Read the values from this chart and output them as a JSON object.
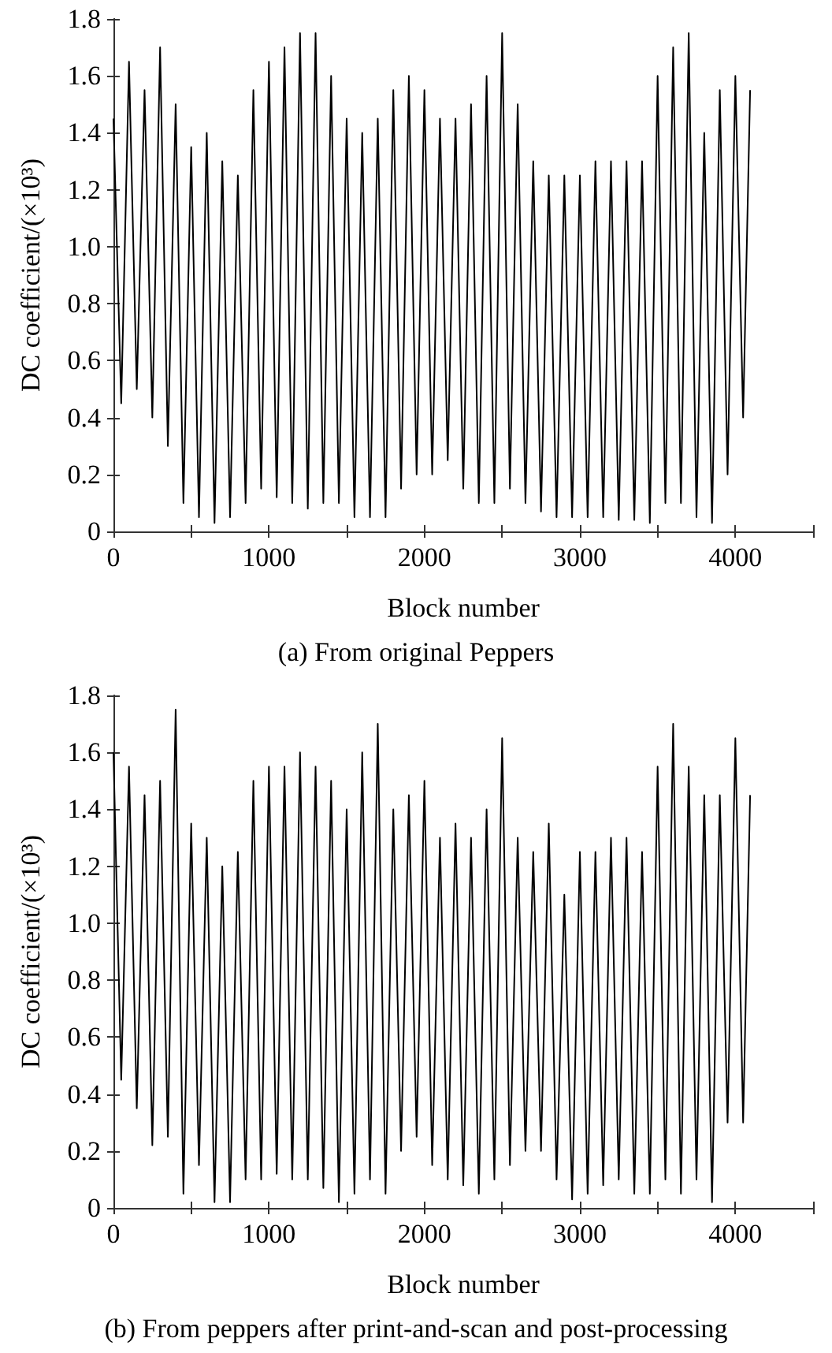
{
  "chart_data": [
    {
      "type": "line",
      "title": "(a) From original Peppers",
      "xlabel": "Block number",
      "ylabel": "DC coefficient/(×10³)",
      "xlim": [
        0,
        4500
      ],
      "xticks": [
        0,
        {
          "value": 500,
          "label": null
        },
        1000,
        {
          "value": 1500,
          "label": null
        },
        2000,
        {
          "value": 2500,
          "label": null
        },
        3000,
        {
          "value": 3500,
          "label": null
        },
        4000,
        {
          "value": 4500,
          "label": null
        }
      ],
      "ylim": [
        0,
        1.8
      ],
      "yticks": [
        0,
        0.2,
        0.4,
        0.6,
        0.8,
        {
          "value": 1,
          "label": "1.0"
        },
        1.2,
        1.4,
        1.6,
        1.8
      ],
      "series": [
        {
          "color": "#000000",
          "x": [
            0,
            50,
            100,
            150,
            200,
            250,
            300,
            350,
            400,
            450,
            500,
            550,
            600,
            650,
            700,
            750,
            800,
            850,
            900,
            950,
            1000,
            1050,
            1100,
            1150,
            1200,
            1250,
            1300,
            1350,
            1400,
            1450,
            1500,
            1550,
            1600,
            1650,
            1700,
            1750,
            1800,
            1850,
            1900,
            1950,
            2000,
            2050,
            2100,
            2150,
            2200,
            2250,
            2300,
            2350,
            2400,
            2450,
            2500,
            2550,
            2600,
            2650,
            2700,
            2750,
            2800,
            2850,
            2900,
            2950,
            3000,
            3050,
            3100,
            3150,
            3200,
            3250,
            3300,
            3350,
            3400,
            3450,
            3500,
            3550,
            3600,
            3650,
            3700,
            3750,
            3800,
            3850,
            3900,
            3950,
            4000,
            4050,
            4095
          ],
          "values": [
            1.45,
            0.45,
            1.65,
            0.5,
            1.55,
            0.4,
            1.7,
            0.3,
            1.5,
            0.1,
            1.35,
            0.05,
            1.4,
            0.03,
            1.3,
            0.05,
            1.25,
            0.1,
            1.55,
            0.15,
            1.65,
            0.12,
            1.7,
            0.1,
            1.75,
            0.08,
            1.75,
            0.1,
            1.6,
            0.1,
            1.45,
            0.05,
            1.4,
            0.05,
            1.45,
            0.05,
            1.55,
            0.15,
            1.6,
            0.2,
            1.55,
            0.2,
            1.45,
            0.25,
            1.45,
            0.15,
            1.5,
            0.1,
            1.6,
            0.1,
            1.75,
            0.15,
            1.5,
            0.1,
            1.3,
            0.07,
            1.25,
            0.05,
            1.25,
            0.05,
            1.25,
            0.05,
            1.3,
            0.05,
            1.3,
            0.04,
            1.3,
            0.04,
            1.3,
            0.03,
            1.6,
            0.1,
            1.7,
            0.1,
            1.75,
            0.05,
            1.4,
            0.03,
            1.55,
            0.2,
            1.6,
            0.4,
            1.55
          ]
        }
      ]
    },
    {
      "type": "line",
      "title": "(b) From peppers after print-and-scan and post-processing",
      "xlabel": "Block number",
      "ylabel": "DC coefficient/(×10³)",
      "xlim": [
        0,
        4500
      ],
      "xticks": [
        0,
        {
          "value": 500,
          "label": null
        },
        1000,
        {
          "value": 1500,
          "label": null
        },
        2000,
        {
          "value": 2500,
          "label": null
        },
        3000,
        {
          "value": 3500,
          "label": null
        },
        4000,
        {
          "value": 4500,
          "label": null
        }
      ],
      "ylim": [
        0,
        1.8
      ],
      "yticks": [
        0,
        0.2,
        0.4,
        0.6,
        0.8,
        {
          "value": 1,
          "label": "1.0"
        },
        1.2,
        1.4,
        1.6,
        1.8
      ],
      "series": [
        {
          "color": "#000000",
          "x": [
            0,
            50,
            100,
            150,
            200,
            250,
            300,
            350,
            400,
            450,
            500,
            550,
            600,
            650,
            700,
            750,
            800,
            850,
            900,
            950,
            1000,
            1050,
            1100,
            1150,
            1200,
            1250,
            1300,
            1350,
            1400,
            1450,
            1500,
            1550,
            1600,
            1650,
            1700,
            1750,
            1800,
            1850,
            1900,
            1950,
            2000,
            2050,
            2100,
            2150,
            2200,
            2250,
            2300,
            2350,
            2400,
            2450,
            2500,
            2550,
            2600,
            2650,
            2700,
            2750,
            2800,
            2850,
            2900,
            2950,
            3000,
            3050,
            3100,
            3150,
            3200,
            3250,
            3300,
            3350,
            3400,
            3450,
            3500,
            3550,
            3600,
            3650,
            3700,
            3750,
            3800,
            3850,
            3900,
            3950,
            4000,
            4050,
            4095
          ],
          "values": [
            1.6,
            0.45,
            1.55,
            0.35,
            1.45,
            0.22,
            1.5,
            0.25,
            1.75,
            0.05,
            1.35,
            0.15,
            1.3,
            0.02,
            1.2,
            0.02,
            1.25,
            0.1,
            1.5,
            0.1,
            1.55,
            0.12,
            1.55,
            0.1,
            1.6,
            0.1,
            1.55,
            0.07,
            1.5,
            0.02,
            1.4,
            0.05,
            1.6,
            0.1,
            1.7,
            0.05,
            1.4,
            0.2,
            1.45,
            0.25,
            1.5,
            0.15,
            1.3,
            0.1,
            1.35,
            0.08,
            1.3,
            0.05,
            1.4,
            0.1,
            1.65,
            0.15,
            1.3,
            0.2,
            1.25,
            0.2,
            1.35,
            0.1,
            1.1,
            0.03,
            1.25,
            0.05,
            1.25,
            0.08,
            1.3,
            0.1,
            1.3,
            0.05,
            1.25,
            0.05,
            1.55,
            0.1,
            1.7,
            0.05,
            1.55,
            0.1,
            1.45,
            0.02,
            1.45,
            0.3,
            1.65,
            0.3,
            1.45
          ]
        }
      ]
    }
  ]
}
